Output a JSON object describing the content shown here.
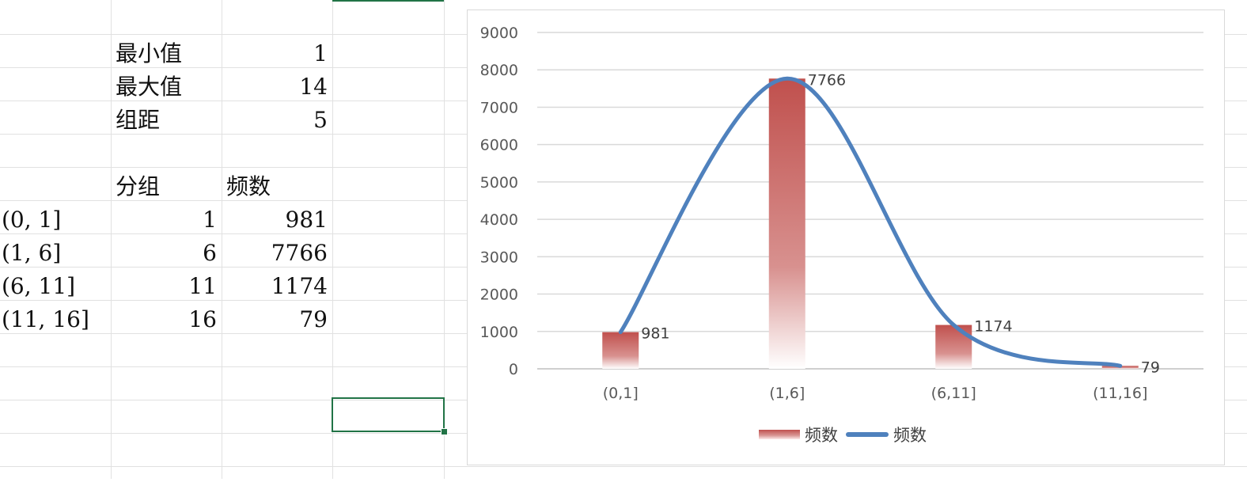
{
  "spreadsheet": {
    "stats": [
      {
        "label": "最小值",
        "value": "1"
      },
      {
        "label": "最大值",
        "value": "14"
      },
      {
        "label": "组距",
        "value": "5"
      }
    ],
    "table_headers": {
      "group": "分组",
      "frequency": "频数"
    },
    "rows": [
      {
        "interval": "(0, 1]",
        "group": "1",
        "frequency": "981"
      },
      {
        "interval": "(1, 6]",
        "group": "6",
        "frequency": "7766"
      },
      {
        "interval": "(6, 11]",
        "group": "11",
        "frequency": "1174"
      },
      {
        "interval": "(11, 16]",
        "group": "16",
        "frequency": "79"
      }
    ]
  },
  "chart_data": {
    "type": "bar",
    "categories": [
      "(0,1]",
      "(1,6]",
      "(6,11]",
      "(11,16]"
    ],
    "series": [
      {
        "name": "频数",
        "type": "bar",
        "values": [
          981,
          7766,
          1174,
          79
        ],
        "color": "#c0504d"
      },
      {
        "name": "频数",
        "type": "line",
        "smooth": true,
        "values": [
          981,
          7766,
          1174,
          79
        ],
        "color": "#4f81bd"
      }
    ],
    "data_labels": [
      "981",
      "7766",
      "1174",
      "79"
    ],
    "ylim": [
      0,
      9000
    ],
    "yticks": [
      "0",
      "1000",
      "2000",
      "3000",
      "4000",
      "5000",
      "6000",
      "7000",
      "8000",
      "9000"
    ],
    "grid": true,
    "legend_position": "bottom",
    "title": "",
    "xlabel": "",
    "ylabel": ""
  },
  "legend": {
    "bar_label": "频数",
    "line_label": "频数"
  }
}
